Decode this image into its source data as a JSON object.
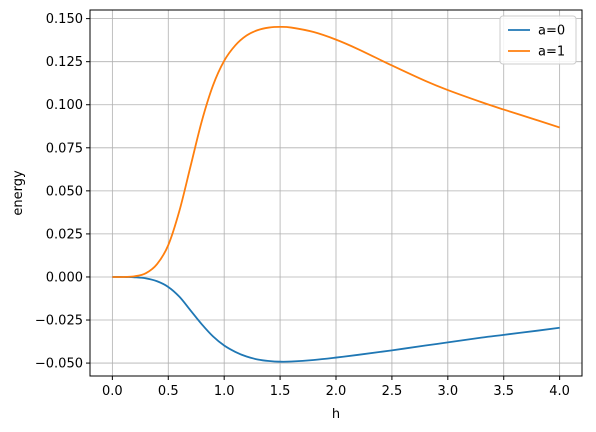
{
  "chart_data": {
    "type": "line",
    "title": "",
    "xlabel": "h",
    "ylabel": "energy",
    "xlim": [
      -0.2,
      4.2
    ],
    "ylim": [
      -0.0575,
      0.155
    ],
    "grid": true,
    "legend_position": "upper right",
    "x_ticks": [
      0.0,
      0.5,
      1.0,
      1.5,
      2.0,
      2.5,
      3.0,
      3.5,
      4.0
    ],
    "x_tick_labels": [
      "0.0",
      "0.5",
      "1.0",
      "1.5",
      "2.0",
      "2.5",
      "3.0",
      "3.5",
      "4.0"
    ],
    "y_ticks": [
      -0.05,
      -0.025,
      0.0,
      0.025,
      0.05,
      0.075,
      0.1,
      0.125,
      0.15
    ],
    "y_tick_labels": [
      "−0.050",
      "−0.025",
      "0.000",
      "0.025",
      "0.050",
      "0.075",
      "0.100",
      "0.125",
      "0.150"
    ],
    "series": [
      {
        "name": "a=0",
        "color": "#1f77b4",
        "x": [
          0.0,
          0.1,
          0.2,
          0.3,
          0.4,
          0.5,
          0.6,
          0.7,
          0.8,
          0.9,
          1.0,
          1.1,
          1.2,
          1.3,
          1.4,
          1.5,
          1.6,
          1.8,
          2.0,
          2.2,
          2.5,
          2.8,
          3.0,
          3.3,
          3.5,
          3.8,
          4.0
        ],
        "y": [
          0.0,
          0.0,
          -0.0002,
          -0.0008,
          -0.0025,
          -0.0058,
          -0.0115,
          -0.0195,
          -0.0275,
          -0.0345,
          -0.0398,
          -0.0435,
          -0.0462,
          -0.0479,
          -0.0488,
          -0.0492,
          -0.0491,
          -0.0482,
          -0.0468,
          -0.0452,
          -0.0426,
          -0.0398,
          -0.038,
          -0.0352,
          -0.0336,
          -0.0312,
          -0.0295
        ]
      },
      {
        "name": "a=1",
        "color": "#ff7f0e",
        "x": [
          0.0,
          0.1,
          0.2,
          0.3,
          0.4,
          0.5,
          0.6,
          0.7,
          0.8,
          0.9,
          1.0,
          1.1,
          1.2,
          1.3,
          1.4,
          1.5,
          1.6,
          1.8,
          2.0,
          2.2,
          2.5,
          2.8,
          3.0,
          3.3,
          3.5,
          3.8,
          4.0
        ],
        "y": [
          0.0,
          0.0,
          0.0004,
          0.0022,
          0.0075,
          0.0185,
          0.0385,
          0.0645,
          0.0905,
          0.1112,
          0.1255,
          0.1345,
          0.1402,
          0.1433,
          0.1448,
          0.1452,
          0.1448,
          0.1422,
          0.1378,
          0.1322,
          0.1228,
          0.1138,
          0.1085,
          0.1015,
          0.0972,
          0.091,
          0.0868
        ]
      }
    ]
  }
}
